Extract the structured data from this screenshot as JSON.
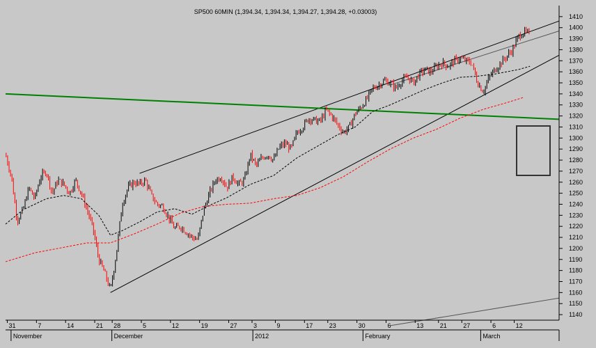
{
  "chart_data": {
    "type": "candlestick",
    "title": "SP500 60MIN (1,394.34, 1,394.34, 1,394.27, 1,394.28, +0.03003)",
    "ylim": [
      1135,
      1420
    ],
    "y_ticks": [
      1140,
      1150,
      1160,
      1170,
      1180,
      1190,
      1200,
      1210,
      1220,
      1230,
      1240,
      1250,
      1260,
      1270,
      1280,
      1290,
      1300,
      1310,
      1320,
      1330,
      1340,
      1350,
      1360,
      1370,
      1380,
      1390,
      1400,
      1410
    ],
    "x_day_ticks": [
      {
        "label": "31",
        "t": 0.3
      },
      {
        "label": "7",
        "t": 5.3
      },
      {
        "label": "14",
        "t": 10.3
      },
      {
        "label": "21",
        "t": 15.3
      },
      {
        "label": "28",
        "t": 18.3
      },
      {
        "label": "5",
        "t": 23.3
      },
      {
        "label": "12",
        "t": 28.3
      },
      {
        "label": "19",
        "t": 33.3
      },
      {
        "label": "27",
        "t": 38.3
      },
      {
        "label": "3",
        "t": 42.3
      },
      {
        "label": "9",
        "t": 46.3
      },
      {
        "label": "17",
        "t": 51.3
      },
      {
        "label": "23",
        "t": 55.3
      },
      {
        "label": "30",
        "t": 60.3
      },
      {
        "label": "6",
        "t": 65.3
      },
      {
        "label": "13",
        "t": 70.3
      },
      {
        "label": "21",
        "t": 74.3
      },
      {
        "label": "27",
        "t": 78.3
      },
      {
        "label": "6",
        "t": 83.3
      },
      {
        "label": "12",
        "t": 87.3
      }
    ],
    "x_month_labels": [
      {
        "label": "November",
        "t": 1.3
      },
      {
        "label": "December",
        "t": 18.6
      },
      {
        "label": "2012",
        "t": 42.8
      },
      {
        "label": "February",
        "t": 61.7
      },
      {
        "label": "March",
        "t": 81.9
      }
    ],
    "price_path": [
      [
        0,
        1285
      ],
      [
        1,
        1265
      ],
      [
        2,
        1225
      ],
      [
        3,
        1235
      ],
      [
        4,
        1255
      ],
      [
        5,
        1245
      ],
      [
        6,
        1265
      ],
      [
        7,
        1270
      ],
      [
        8,
        1250
      ],
      [
        9,
        1262
      ],
      [
        10,
        1258
      ],
      [
        11,
        1250
      ],
      [
        12,
        1262
      ],
      [
        13,
        1250
      ],
      [
        14,
        1235
      ],
      [
        15,
        1218
      ],
      [
        16,
        1190
      ],
      [
        17,
        1178
      ],
      [
        18,
        1162
      ],
      [
        19,
        1195
      ],
      [
        20,
        1240
      ],
      [
        21,
        1255
      ],
      [
        22,
        1260
      ],
      [
        23,
        1258
      ],
      [
        24,
        1262
      ],
      [
        25,
        1248
      ],
      [
        26,
        1240
      ],
      [
        27,
        1238
      ],
      [
        28,
        1228
      ],
      [
        29,
        1218
      ],
      [
        30,
        1220
      ],
      [
        31,
        1215
      ],
      [
        32,
        1210
      ],
      [
        33,
        1208
      ],
      [
        34,
        1235
      ],
      [
        35,
        1250
      ],
      [
        36,
        1262
      ],
      [
        37,
        1265
      ],
      [
        38,
        1255
      ],
      [
        39,
        1265
      ],
      [
        40,
        1258
      ],
      [
        41,
        1262
      ],
      [
        42,
        1285
      ],
      [
        43,
        1275
      ],
      [
        44,
        1282
      ],
      [
        45,
        1285
      ],
      [
        46,
        1280
      ],
      [
        47,
        1292
      ],
      [
        48,
        1295
      ],
      [
        49,
        1290
      ],
      [
        50,
        1305
      ],
      [
        51,
        1310
      ],
      [
        52,
        1318
      ],
      [
        53,
        1316
      ],
      [
        54,
        1315
      ],
      [
        55,
        1325
      ],
      [
        56,
        1320
      ],
      [
        57,
        1312
      ],
      [
        58,
        1305
      ],
      [
        59,
        1310
      ],
      [
        60,
        1322
      ],
      [
        61,
        1328
      ],
      [
        62,
        1335
      ],
      [
        63,
        1345
      ],
      [
        64,
        1348
      ],
      [
        65,
        1352
      ],
      [
        66,
        1350
      ],
      [
        67,
        1345
      ],
      [
        68,
        1352
      ],
      [
        69,
        1355
      ],
      [
        70,
        1350
      ],
      [
        71,
        1358
      ],
      [
        72,
        1362
      ],
      [
        73,
        1360
      ],
      [
        74,
        1365
      ],
      [
        75,
        1368
      ],
      [
        76,
        1365
      ],
      [
        77,
        1370
      ],
      [
        78,
        1372
      ],
      [
        79,
        1370
      ],
      [
        80,
        1368
      ],
      [
        81,
        1350
      ],
      [
        82,
        1342
      ],
      [
        83,
        1355
      ],
      [
        84,
        1362
      ],
      [
        85,
        1368
      ],
      [
        86,
        1374
      ],
      [
        87,
        1380
      ],
      [
        88,
        1392
      ],
      [
        89,
        1396
      ],
      [
        90,
        1394
      ]
    ],
    "ma_short": [
      [
        0,
        1222
      ],
      [
        3,
        1235
      ],
      [
        7,
        1245
      ],
      [
        10,
        1248
      ],
      [
        13,
        1245
      ],
      [
        16,
        1230
      ],
      [
        18,
        1212
      ],
      [
        20,
        1216
      ],
      [
        23,
        1224
      ],
      [
        26,
        1233
      ],
      [
        29,
        1236
      ],
      [
        32,
        1231
      ],
      [
        35,
        1239
      ],
      [
        38,
        1246
      ],
      [
        42,
        1258
      ],
      [
        46,
        1266
      ],
      [
        50,
        1282
      ],
      [
        54,
        1294
      ],
      [
        57,
        1303
      ],
      [
        60,
        1310
      ],
      [
        63,
        1324
      ],
      [
        66,
        1330
      ],
      [
        69,
        1337
      ],
      [
        72,
        1344
      ],
      [
        75,
        1350
      ],
      [
        78,
        1355
      ],
      [
        81,
        1356
      ],
      [
        84,
        1358
      ],
      [
        88,
        1362
      ],
      [
        90,
        1365
      ]
    ],
    "ma_long": [
      [
        0,
        1188
      ],
      [
        5,
        1196
      ],
      [
        10,
        1201
      ],
      [
        14,
        1205
      ],
      [
        18,
        1205
      ],
      [
        22,
        1213
      ],
      [
        26,
        1222
      ],
      [
        30,
        1232
      ],
      [
        34,
        1238
      ],
      [
        38,
        1240
      ],
      [
        42,
        1241
      ],
      [
        46,
        1245
      ],
      [
        50,
        1248
      ],
      [
        54,
        1255
      ],
      [
        58,
        1265
      ],
      [
        62,
        1278
      ],
      [
        66,
        1290
      ],
      [
        70,
        1300
      ],
      [
        74,
        1308
      ],
      [
        78,
        1318
      ],
      [
        82,
        1326
      ],
      [
        86,
        1332
      ],
      [
        89,
        1337
      ]
    ],
    "lines": [
      {
        "color": "#000000",
        "from": [
          23,
          1268
        ],
        "to": [
          95,
          1406
        ]
      },
      {
        "color": "#000000",
        "from": [
          18,
          1160
        ],
        "to": [
          95,
          1375
        ]
      },
      {
        "color": "#555555",
        "from": [
          66,
          1348
        ],
        "to": [
          95,
          1397
        ]
      },
      {
        "color": "#555555",
        "from": [
          66,
          1130
        ],
        "to": [
          95,
          1155
        ]
      },
      {
        "color": "#008000",
        "from": [
          0,
          1340
        ],
        "to": [
          95,
          1317
        ]
      }
    ],
    "colors": {
      "up": "#000000",
      "down": "#ff0000",
      "ma_short": "#000000",
      "ma_long": "#ff0000",
      "trend_green": "#008000",
      "background": "#c8c8c8"
    }
  }
}
